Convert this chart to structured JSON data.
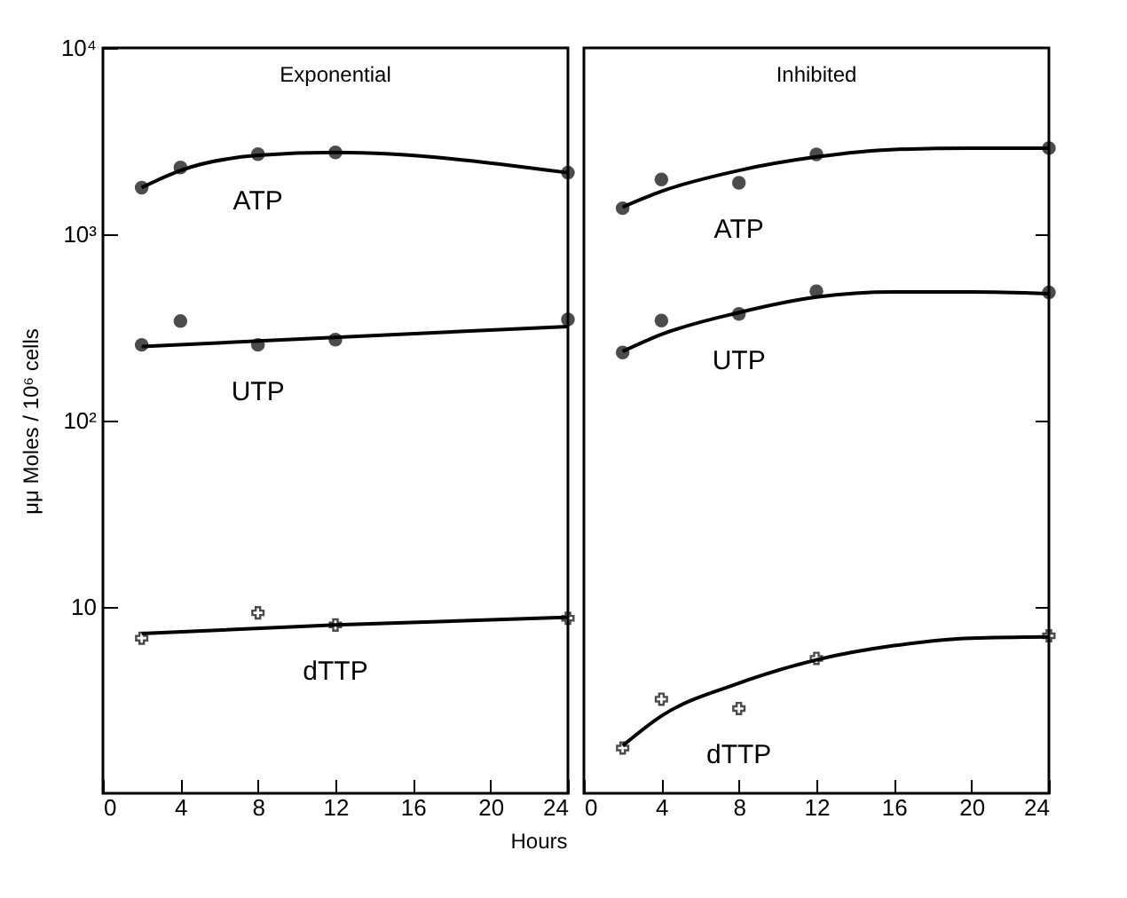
{
  "chart_data": [
    {
      "type": "scatter",
      "title": "Exponential",
      "xlabel": "Hours",
      "ylabel": "μμ Moles / 10⁶ cells",
      "log": "y",
      "grid": false,
      "xlim": [
        0,
        24
      ],
      "xticks": [
        0,
        4,
        8,
        12,
        16,
        20,
        24
      ],
      "ylim": [
        1,
        10000
      ],
      "yticks": [
        {
          "value": 10,
          "label": "10"
        },
        {
          "value": 100,
          "label": "10²"
        },
        {
          "value": 1000,
          "label": "10³"
        },
        {
          "value": 10000,
          "label": "10⁴"
        }
      ],
      "series": [
        {
          "name": "ATP",
          "marker": "circle",
          "color": "#000000",
          "x": [
            2,
            4,
            8,
            12,
            24
          ],
          "values": [
            1780,
            2280,
            2690,
            2750,
            2140
          ]
        },
        {
          "name": "UTP",
          "marker": "circle",
          "color": "#000000",
          "x": [
            2,
            4,
            8,
            12,
            24
          ],
          "values": [
            255,
            342,
            255,
            272,
            349
          ]
        },
        {
          "name": "dTTP",
          "marker": "cross",
          "color": "#000000",
          "x": [
            2,
            8,
            12,
            24
          ],
          "values": [
            6.8,
            9.3,
            8.0,
            8.7
          ]
        },
        {
          "type": "line",
          "color": "#000000",
          "x": [
            2,
            4,
            8,
            12,
            24
          ],
          "values": [
            1780,
            2200,
            2650,
            2750,
            2140
          ]
        },
        {
          "type": "line",
          "color": "#000000",
          "x": [
            2,
            24
          ],
          "values": [
            250,
            320
          ]
        },
        {
          "type": "line",
          "color": "#000000",
          "x": [
            2,
            12,
            24
          ],
          "values": [
            7.2,
            8.0,
            8.8
          ]
        }
      ]
    },
    {
      "type": "scatter",
      "title": "Inhibited",
      "log": "y",
      "grid": false,
      "tick_labels": "x",
      "xlim": [
        0,
        24
      ],
      "xticks": [
        0,
        4,
        8,
        12,
        16,
        20,
        24
      ],
      "ylim": [
        1,
        10000
      ],
      "yticks": [
        10,
        100,
        1000
      ],
      "series": [
        {
          "name": "ATP",
          "marker": "circle",
          "color": "#000000",
          "x": [
            2,
            4,
            8,
            12,
            24
          ],
          "values": [
            1380,
            1970,
            1890,
            2680,
            2900
          ]
        },
        {
          "name": "UTP",
          "marker": "circle",
          "color": "#000000",
          "x": [
            2,
            4,
            8,
            12,
            24
          ],
          "values": [
            232,
            344,
            374,
            494,
            487
          ]
        },
        {
          "name": "dTTP",
          "marker": "cross",
          "color": "#000000",
          "x": [
            2,
            4,
            8,
            12,
            24
          ],
          "values": [
            1.75,
            3.2,
            2.85,
            5.3,
            7.0
          ]
        },
        {
          "type": "line",
          "color": "#000000",
          "x": [
            2,
            4,
            8,
            12,
            16,
            20,
            24
          ],
          "values": [
            1400,
            1700,
            2200,
            2600,
            2850,
            2900,
            2900
          ]
        },
        {
          "type": "line",
          "color": "#000000",
          "x": [
            2,
            4,
            8,
            12,
            16,
            20,
            24
          ],
          "values": [
            235,
            290,
            380,
            460,
            490,
            490,
            480
          ]
        },
        {
          "type": "line",
          "color": "#000000",
          "x": [
            2,
            4,
            8,
            12,
            16,
            20,
            24
          ],
          "values": [
            1.8,
            2.6,
            3.9,
            5.2,
            6.2,
            6.8,
            6.9
          ]
        }
      ]
    }
  ]
}
